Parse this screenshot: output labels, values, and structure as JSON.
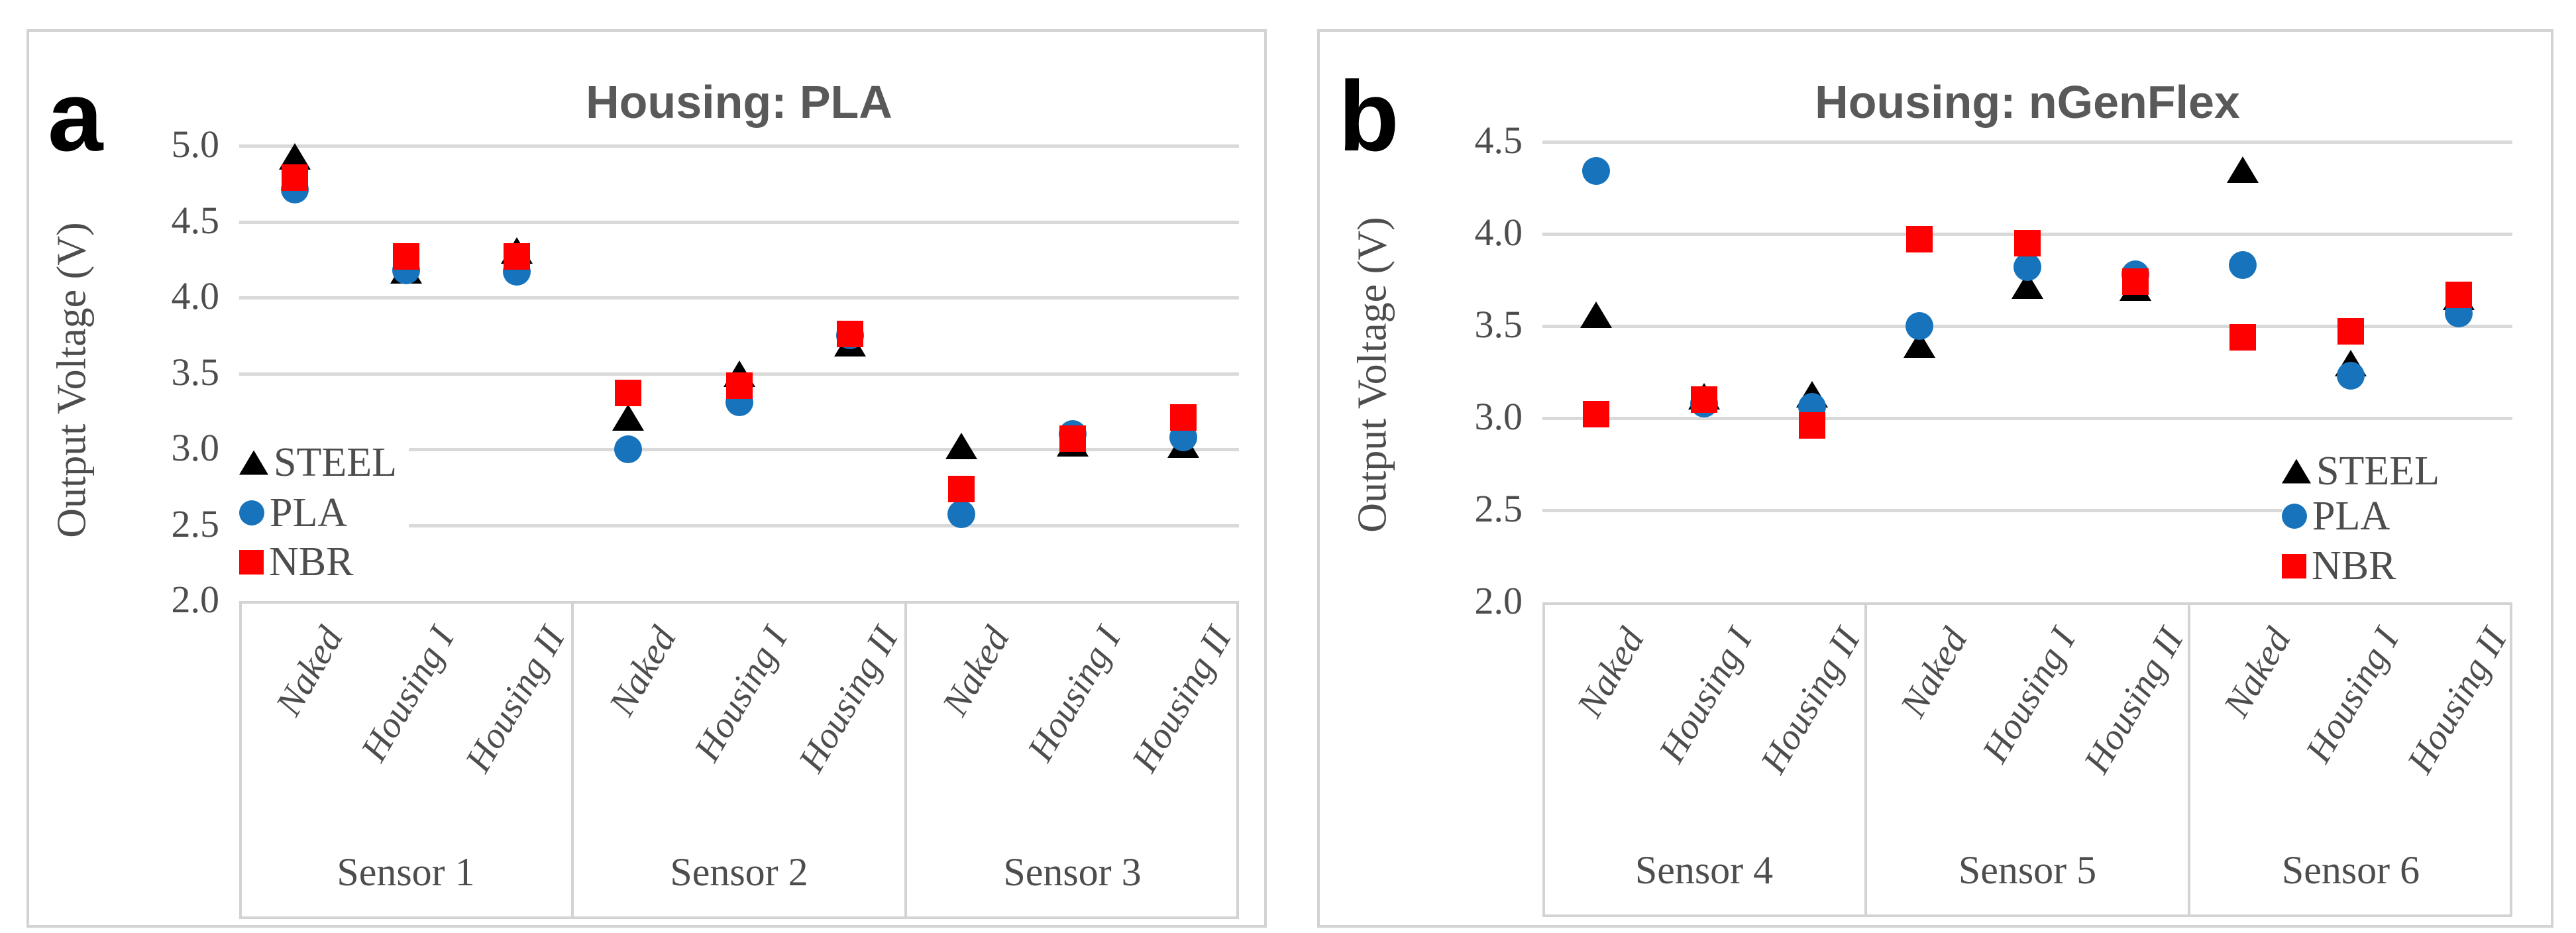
{
  "colors": {
    "steel_marker": "#000000",
    "pla_marker": "#1673BC",
    "nbr_marker": "#FF0000",
    "gridline": "#D9D9D9",
    "title_text": "#595959",
    "axis_text": "#4D4D4D"
  },
  "panels": [
    {
      "letter": "a",
      "title": "Housing: PLA",
      "y_axis_label": "Output Voltage (V)",
      "y_ticks": [
        "5.0",
        "4.5",
        "4.0",
        "3.5",
        "3.0",
        "2.5",
        "2.0"
      ],
      "legend": [
        {
          "label": "STEEL"
        },
        {
          "label": "PLA"
        },
        {
          "label": "NBR"
        }
      ],
      "groups": [
        {
          "label": "Sensor 1",
          "categories": [
            "Naked",
            "Housing I",
            "Housing II"
          ]
        },
        {
          "label": "Sensor 2",
          "categories": [
            "Naked",
            "Housing I",
            "Housing II"
          ]
        },
        {
          "label": "Sensor 3",
          "categories": [
            "Naked",
            "Housing I",
            "Housing II"
          ]
        }
      ]
    },
    {
      "letter": "b",
      "title": "Housing: nGenFlex",
      "y_axis_label": "Output Voltage (V)",
      "y_ticks": [
        "4.5",
        "4.0",
        "3.5",
        "3.0",
        "2.5",
        "2.0"
      ],
      "legend": [
        {
          "label": "STEEL"
        },
        {
          "label": "PLA"
        },
        {
          "label": "NBR"
        }
      ],
      "groups": [
        {
          "label": "Sensor 4",
          "categories": [
            "Naked",
            "Housing I",
            "Housing II"
          ]
        },
        {
          "label": "Sensor 5",
          "categories": [
            "Naked",
            "Housing I",
            "Housing II"
          ]
        },
        {
          "label": "Sensor 6",
          "categories": [
            "Naked",
            "Housing I",
            "Housing II"
          ]
        }
      ]
    }
  ],
  "chart_data": [
    {
      "type": "scatter",
      "title": "Housing: PLA",
      "ylabel": "Output Voltage (V)",
      "ylim": [
        2.0,
        5.0
      ],
      "ytick_step": 0.5,
      "grid": true,
      "legend_position": "inside-left",
      "group_labels": [
        "Sensor 1",
        "Sensor 2",
        "Sensor 3"
      ],
      "categories": [
        "Naked",
        "Housing I",
        "Housing II",
        "Naked",
        "Housing I",
        "Housing II",
        "Naked",
        "Housing I",
        "Housing II"
      ],
      "series": [
        {
          "name": "STEEL",
          "marker": "triangle",
          "values": [
            4.93,
            4.18,
            4.31,
            3.21,
            3.5,
            3.7,
            3.02,
            3.04,
            3.03
          ]
        },
        {
          "name": "PLA",
          "marker": "circle",
          "values": [
            4.71,
            4.18,
            4.17,
            3.0,
            3.31,
            3.75,
            2.57,
            3.1,
            3.08
          ]
        },
        {
          "name": "NBR",
          "marker": "square",
          "values": [
            4.79,
            4.27,
            4.27,
            3.37,
            3.42,
            3.76,
            2.74,
            3.07,
            3.21
          ]
        }
      ]
    },
    {
      "type": "scatter",
      "title": "Housing: nGenFlex",
      "ylabel": "Output Voltage (V)",
      "ylim": [
        2.0,
        4.5
      ],
      "ytick_step": 0.5,
      "grid": true,
      "legend_position": "inside-right",
      "group_labels": [
        "Sensor 4",
        "Sensor 5",
        "Sensor 6"
      ],
      "categories": [
        "Naked",
        "Housing I",
        "Housing II",
        "Naked",
        "Housing I",
        "Housing II",
        "Naked",
        "Housing I",
        "Housing II"
      ],
      "series": [
        {
          "name": "STEEL",
          "marker": "triangle",
          "values": [
            3.56,
            3.12,
            3.13,
            3.4,
            3.72,
            3.71,
            4.35,
            3.3,
            3.66
          ]
        },
        {
          "name": "PLA",
          "marker": "circle",
          "values": [
            4.34,
            3.08,
            3.06,
            3.5,
            3.82,
            3.78,
            3.83,
            3.23,
            3.57
          ]
        },
        {
          "name": "NBR",
          "marker": "square",
          "values": [
            3.02,
            3.1,
            2.96,
            3.97,
            3.95,
            3.74,
            3.44,
            3.47,
            3.67
          ]
        }
      ]
    }
  ]
}
